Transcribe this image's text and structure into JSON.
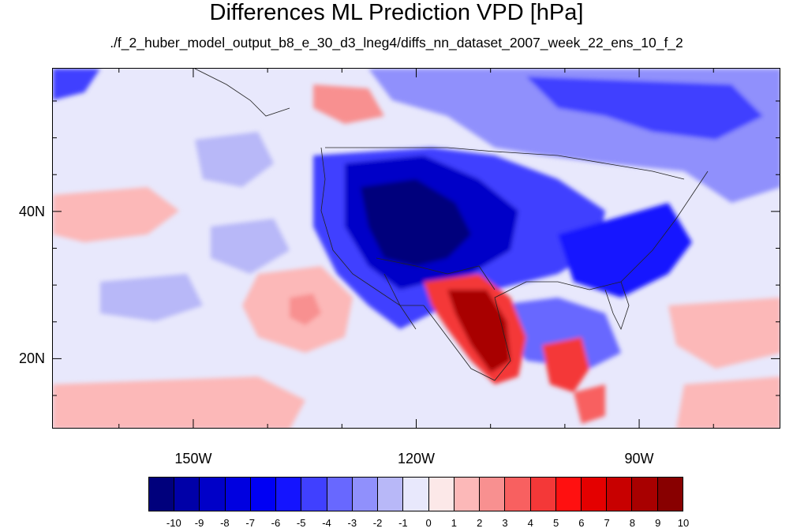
{
  "title": "Differences ML Prediction VPD [hPa]",
  "subtitle": "./f_2_huber_model_output_b8_e_30_d3_lneg4/diffs_nn_dataset_2007_week_22_ens_10_f_2",
  "map": {
    "lon_range": [
      -169,
      -71
    ],
    "lat_range": [
      10.5,
      59.5
    ],
    "x_ticks": [
      "150W",
      "120W",
      "90W"
    ],
    "x_tick_values": [
      -150,
      -120,
      -90
    ],
    "y_ticks": [
      "40N",
      "20N"
    ],
    "y_tick_values": [
      40,
      20
    ],
    "background_color": "#e8e8fc"
  },
  "colorbar": {
    "colors": [
      "#00007c",
      "#0000a8",
      "#0000c8",
      "#0000e0",
      "#0000f4",
      "#1414ff",
      "#4040ff",
      "#6868ff",
      "#9090fc",
      "#b8b8f8",
      "#e8e8fc",
      "#fce8e8",
      "#fcb8b8",
      "#f89090",
      "#f86060",
      "#f43838",
      "#ff1010",
      "#e40000",
      "#c80000",
      "#a80000",
      "#880000"
    ],
    "labels": [
      "-10",
      "-9",
      "-8",
      "-7",
      "-6",
      "-5",
      "-4",
      "-3",
      "-2",
      "-1",
      "0",
      "1",
      "2",
      "3",
      "4",
      "5",
      "6",
      "7",
      "8",
      "9",
      "10"
    ]
  }
}
